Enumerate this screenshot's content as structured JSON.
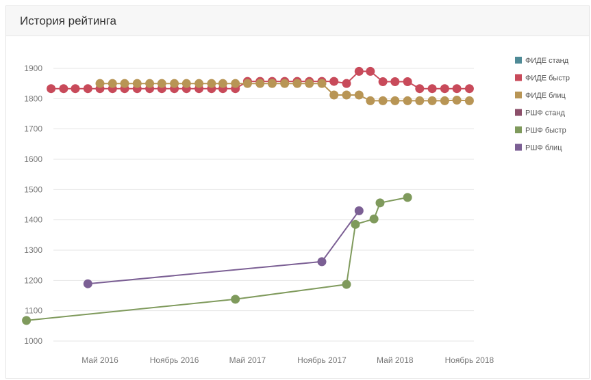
{
  "panel": {
    "title": "История рейтинга"
  },
  "chart_data": {
    "type": "line",
    "title": "История рейтинга",
    "xlabel": "",
    "ylabel": "",
    "ylim": [
      1000,
      1900
    ],
    "y_ticks": [
      "1900",
      "1800",
      "1700",
      "1600",
      "1500",
      "1400",
      "1300",
      "1200",
      "1100",
      "1000"
    ],
    "x_ticks": [
      {
        "label": "Май 2016",
        "date": "2016-05-01"
      },
      {
        "label": "Ноябрь 2016",
        "date": "2016-11-01"
      },
      {
        "label": "Май 2017",
        "date": "2017-05-01"
      },
      {
        "label": "Ноябрь 2017",
        "date": "2017-11-01"
      },
      {
        "label": "Май 2018",
        "date": "2018-05-01"
      },
      {
        "label": "Ноябрь 2018",
        "date": "2018-11-01"
      }
    ],
    "grid": true,
    "legend_position": "right",
    "series": [
      {
        "name": "ФИДЕ станд",
        "color": "#4f8a96",
        "points": []
      },
      {
        "name": "ФИДЕ быстр",
        "color": "#c84a5a",
        "points": [
          [
            "2016-01-01",
            1833
          ],
          [
            "2016-02-01",
            1833
          ],
          [
            "2016-03-01",
            1833
          ],
          [
            "2016-04-01",
            1833
          ],
          [
            "2016-05-01",
            1833
          ],
          [
            "2016-06-01",
            1833
          ],
          [
            "2016-07-01",
            1833
          ],
          [
            "2016-08-01",
            1833
          ],
          [
            "2016-09-01",
            1833
          ],
          [
            "2016-10-01",
            1833
          ],
          [
            "2016-11-01",
            1833
          ],
          [
            "2016-12-01",
            1833
          ],
          [
            "2017-01-01",
            1833
          ],
          [
            "2017-02-01",
            1833
          ],
          [
            "2017-03-01",
            1833
          ],
          [
            "2017-04-01",
            1833
          ],
          [
            "2017-05-01",
            1857
          ],
          [
            "2017-06-01",
            1857
          ],
          [
            "2017-07-01",
            1857
          ],
          [
            "2017-08-01",
            1857
          ],
          [
            "2017-09-01",
            1857
          ],
          [
            "2017-10-01",
            1857
          ],
          [
            "2017-11-01",
            1857
          ],
          [
            "2017-12-01",
            1857
          ],
          [
            "2018-01-01",
            1850
          ],
          [
            "2018-02-01",
            1890
          ],
          [
            "2018-03-01",
            1890
          ],
          [
            "2018-04-01",
            1856
          ],
          [
            "2018-05-01",
            1856
          ],
          [
            "2018-06-01",
            1856
          ],
          [
            "2018-07-01",
            1833
          ],
          [
            "2018-08-01",
            1833
          ],
          [
            "2018-09-01",
            1833
          ],
          [
            "2018-10-01",
            1833
          ],
          [
            "2018-11-01",
            1833
          ]
        ]
      },
      {
        "name": "ФИДЕ блиц",
        "color": "#b89555",
        "points": [
          [
            "2016-05-01",
            1850
          ],
          [
            "2016-06-01",
            1850
          ],
          [
            "2016-07-01",
            1850
          ],
          [
            "2016-08-01",
            1850
          ],
          [
            "2016-09-01",
            1850
          ],
          [
            "2016-10-01",
            1850
          ],
          [
            "2016-11-01",
            1850
          ],
          [
            "2016-12-01",
            1850
          ],
          [
            "2017-01-01",
            1850
          ],
          [
            "2017-02-01",
            1850
          ],
          [
            "2017-03-01",
            1850
          ],
          [
            "2017-04-01",
            1850
          ],
          [
            "2017-05-01",
            1850
          ],
          [
            "2017-06-01",
            1850
          ],
          [
            "2017-07-01",
            1850
          ],
          [
            "2017-08-01",
            1850
          ],
          [
            "2017-09-01",
            1850
          ],
          [
            "2017-10-01",
            1850
          ],
          [
            "2017-11-01",
            1850
          ],
          [
            "2017-12-01",
            1812
          ],
          [
            "2018-01-01",
            1812
          ],
          [
            "2018-02-01",
            1812
          ],
          [
            "2018-03-01",
            1793
          ],
          [
            "2018-04-01",
            1793
          ],
          [
            "2018-05-01",
            1793
          ],
          [
            "2018-06-01",
            1793
          ],
          [
            "2018-07-01",
            1793
          ],
          [
            "2018-08-01",
            1793
          ],
          [
            "2018-09-01",
            1793
          ],
          [
            "2018-10-01",
            1795
          ],
          [
            "2018-11-01",
            1793
          ]
        ]
      },
      {
        "name": "РШФ станд",
        "color": "#8c4f6a",
        "points": []
      },
      {
        "name": "РШФ быстр",
        "color": "#7f9a5c",
        "points": [
          [
            "2015-11-01",
            1068
          ],
          [
            "2017-04-01",
            1138
          ],
          [
            "2018-01-01",
            1187
          ],
          [
            "2018-01-23",
            1385
          ],
          [
            "2018-03-10",
            1403
          ],
          [
            "2018-03-25",
            1456
          ],
          [
            "2018-06-01",
            1474
          ]
        ]
      },
      {
        "name": "РШФ блиц",
        "color": "#7b5f94",
        "points": [
          [
            "2016-04-01",
            1189
          ],
          [
            "2017-11-01",
            1262
          ],
          [
            "2018-02-01",
            1430
          ]
        ]
      }
    ]
  }
}
